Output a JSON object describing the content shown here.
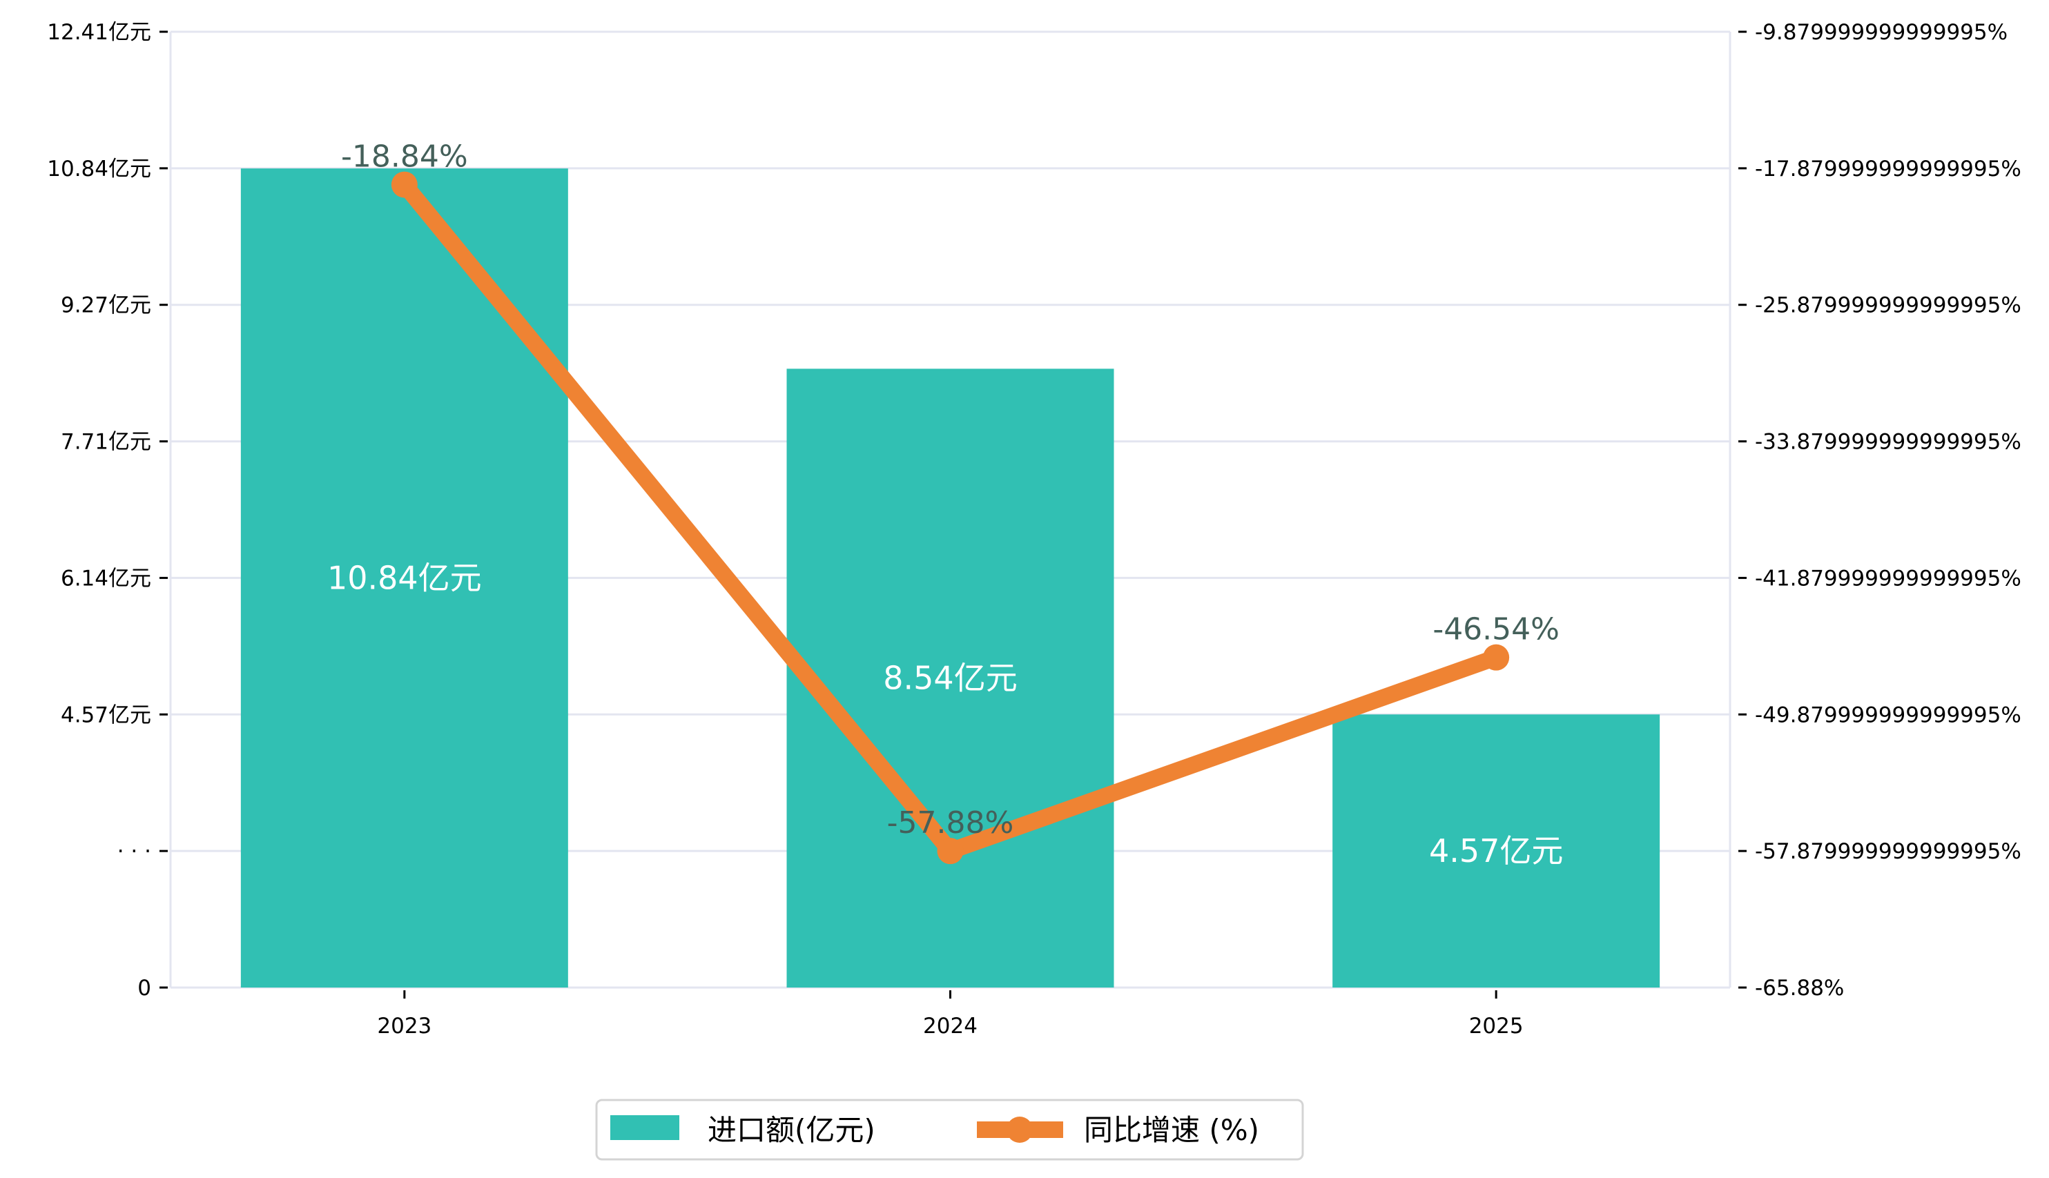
{
  "chart_data": {
    "type": "bar",
    "categories": [
      "2023",
      "2024",
      "2025"
    ],
    "series": [
      {
        "name": "进口额(亿元)",
        "kind": "bar",
        "axis": "left",
        "values": [
          10.84,
          8.54,
          4.57
        ],
        "labels": [
          "10.84亿元",
          "8.54亿元",
          "4.57亿元"
        ],
        "color": "#31c0b3"
      },
      {
        "name": "同比增速 (%)",
        "kind": "line",
        "axis": "right",
        "values": [
          -18.84,
          -57.88,
          -46.54
        ],
        "labels": [
          "-18.84%",
          "-57.88%",
          "-46.54%"
        ],
        "color": "#ef8333"
      }
    ],
    "left_axis": {
      "ticks": [
        0,
        null,
        4.57,
        6.14,
        7.71,
        9.27,
        10.84,
        12.41
      ],
      "tick_labels": [
        "0",
        "· · ·",
        "4.57亿元",
        "6.14亿元",
        "7.71亿元",
        "9.27亿元",
        "10.84亿元",
        "12.41亿元"
      ],
      "ylim": [
        0,
        12.41
      ]
    },
    "right_axis": {
      "ticks": [
        -65.88,
        -57.88,
        -49.88,
        -41.88,
        -33.88,
        -25.88,
        -17.88,
        -9.88
      ],
      "tick_labels": [
        "-65.88%",
        "-57.879999999999995%",
        "-49.879999999999995%",
        "-41.879999999999995%",
        "-33.879999999999995%",
        "-25.879999999999995%",
        "-17.879999999999995%",
        "-9.879999999999995%"
      ],
      "ylim": [
        -65.88,
        -9.88
      ]
    },
    "grid": true,
    "legend_position": "bottom-center",
    "title": "",
    "xlabel": "",
    "ylabel": ""
  }
}
